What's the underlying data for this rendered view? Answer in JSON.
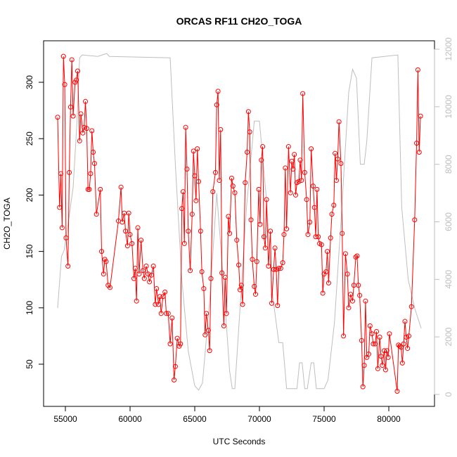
{
  "chart_data": {
    "type": "line",
    "title": "ORCAS RF11 CH2O_TOGA",
    "x_label": "UTC Seconds",
    "y_label": "CH2O_TOGA",
    "xlim": [
      53315,
      83533
    ],
    "xticks": [
      55000,
      60000,
      65000,
      70000,
      75000,
      80000
    ],
    "ylim": [
      12.6,
      336.8
    ],
    "yticks": [
      50,
      100,
      150,
      200,
      250,
      300
    ],
    "y2lim": [
      -416,
      12293
    ],
    "y2ticks": [
      0,
      2000,
      4000,
      6000,
      8000,
      10000,
      12000
    ],
    "series": [
      {
        "color": "#ff0000",
        "markers": true,
        "x": [
          54400,
          54550,
          54650,
          54750,
          54850,
          54950,
          55050,
          55200,
          55300,
          55400,
          55500,
          55600,
          55750,
          55850,
          55950,
          56100,
          56200,
          56350,
          56450,
          56550,
          56650,
          56750,
          56850,
          56950,
          57050,
          57150,
          57250,
          57400,
          57700,
          57800,
          57950,
          58050,
          58150,
          58300,
          58450,
          59100,
          59300,
          59400,
          59550,
          59650,
          59800,
          59900,
          60000,
          60150,
          60300,
          60400,
          60500,
          60600,
          60700,
          60850,
          61000,
          61100,
          61250,
          61400,
          61500,
          61650,
          61800,
          61950,
          62050,
          62200,
          62300,
          62400,
          62550,
          62700,
          62800,
          62950,
          63100,
          63250,
          63400,
          63500,
          63650,
          63800,
          63900,
          64000,
          64100,
          64200,
          64300,
          64400,
          64500,
          64650,
          64800,
          64900,
          65000,
          65100,
          65200,
          65300,
          65450,
          65550,
          65700,
          65800,
          65900,
          66050,
          66150,
          66250,
          66400,
          66600,
          66700,
          66800,
          66900,
          67000,
          67100,
          67250,
          67350,
          67450,
          67600,
          67700,
          67850,
          67950,
          68100,
          68250,
          68400,
          68500,
          68600,
          68700,
          68900,
          69050,
          69150,
          69250,
          69350,
          69450,
          69600,
          69700,
          69800,
          69950,
          70050,
          70150,
          70250,
          70350,
          70450,
          70550,
          70700,
          70850,
          70950,
          71100,
          71200,
          71300,
          71400,
          71500,
          71650,
          71800,
          71900,
          72000,
          72100,
          72250,
          72400,
          72500,
          72600,
          72700,
          72800,
          72900,
          73050,
          73150,
          73250,
          73350,
          73500,
          73650,
          73750,
          73900,
          74000,
          74150,
          74250,
          74350,
          74450,
          74550,
          74650,
          74800,
          74900,
          75000,
          75150,
          75250,
          75350,
          75500,
          75600,
          75750,
          75850,
          75950,
          76050,
          76150,
          76300,
          76400,
          76500,
          76650,
          76800,
          76900,
          77050,
          77200,
          77300,
          77450,
          77550,
          77650,
          77750,
          77900,
          78000,
          78100,
          78200,
          78300,
          78450,
          78550,
          78700,
          78800,
          78950,
          79050,
          79150,
          79300,
          79400,
          79500,
          79650,
          79750,
          79850,
          79950,
          80050,
          80650,
          80750,
          80850,
          80950,
          81050,
          81150,
          81250,
          81350,
          81450,
          81550,
          81750,
          82000,
          82150,
          82250,
          82350,
          82450
        ],
        "values": [
          269,
          189,
          219,
          171,
          323,
          298,
          162,
          137,
          220,
          278,
          320,
          270,
          300,
          302,
          310,
          248,
          272,
          255,
          260,
          283,
          259,
          205,
          205,
          219,
          257,
          238,
          228,
          183,
          205,
          150,
          130,
          143,
          141,
          120,
          118,
          177,
          207,
          176,
          184,
          168,
          155,
          184,
          165,
          157,
          126,
          135,
          106,
          171,
          130,
          160,
          133,
          126,
          137,
          130,
          123,
          129,
          137,
          103,
          117,
          103,
          110,
          95,
          110,
          114,
          95,
          95,
          68,
          91,
          36,
          48,
          73,
          66,
          68,
          188,
          203,
          157,
          260,
          223,
          168,
          133,
          183,
          239,
          217,
          195,
          241,
          212,
          168,
          132,
          117,
          76,
          95,
          80,
          62,
          126,
          203,
          220,
          280,
          292,
          213,
          258,
          131,
          84,
          127,
          95,
          181,
          166,
          215,
          208,
          202,
          160,
          138,
          116,
          120,
          103,
          211,
          238,
          274,
          256,
          178,
          143,
          119,
          112,
          141,
          205,
          174,
          231,
          243,
          163,
          153,
          196,
          137,
          168,
          104,
          134,
          153,
          134,
          102,
          135,
          135,
          140,
          165,
          224,
          170,
          243,
          202,
          230,
          223,
          236,
          200,
          211,
          212,
          231,
          213,
          290,
          220,
          196,
          165,
          176,
          241,
          208,
          189,
          163,
          205,
          163,
          157,
          156,
          113,
          130,
          132,
          150,
          122,
          162,
          183,
          191,
          237,
          213,
          232,
          265,
          228,
          166,
          75,
          148,
          130,
          100,
          112,
          106,
          120,
          145,
          146,
          120,
          111,
          71,
          30,
          49,
          106,
          56,
          59,
          84,
          77,
          68,
          68,
          79,
          46,
          74,
          57,
          49,
          62,
          45,
          62,
          56,
          77,
          26,
          67,
          66,
          65,
          51,
          68,
          88,
          74,
          64,
          75,
          101,
          178,
          246,
          311,
          238,
          270
        ]
      },
      {
        "color": "#bebebe",
        "axis": "y2",
        "markers": false,
        "x": [
          54400,
          54700,
          54900,
          55200,
          55600,
          55900,
          56100,
          56300,
          57500,
          58200,
          58400,
          63100,
          63500,
          64000,
          64500,
          65000,
          65300,
          65600,
          66200,
          66700,
          67200,
          67700,
          67900,
          68100,
          68500,
          69000,
          69600,
          70000,
          70500,
          71000,
          71500,
          71800,
          72100,
          72600,
          72900,
          73100,
          73300,
          73500,
          73700,
          74000,
          74200,
          74400,
          75000,
          75300,
          75800,
          76300,
          76900,
          77200,
          77500,
          77800,
          78100,
          78300,
          78700,
          80700,
          81000,
          81500,
          82000,
          82500
        ],
        "values": [
          3000,
          4800,
          5000,
          5900,
          7200,
          9500,
          11700,
          11800,
          11750,
          11850,
          11750,
          11700,
          8000,
          4000,
          1500,
          300,
          150,
          400,
          3500,
          7000,
          4000,
          800,
          200,
          200,
          3000,
          6500,
          9500,
          9500,
          7000,
          3500,
          1800,
          1800,
          200,
          200,
          200,
          1100,
          1100,
          200,
          200,
          1100,
          1100,
          200,
          200,
          500,
          2500,
          6000,
          10500,
          11300,
          11000,
          8000,
          8000,
          8800,
          11700,
          11800,
          6500,
          4000,
          3000,
          2300
        ]
      }
    ]
  }
}
